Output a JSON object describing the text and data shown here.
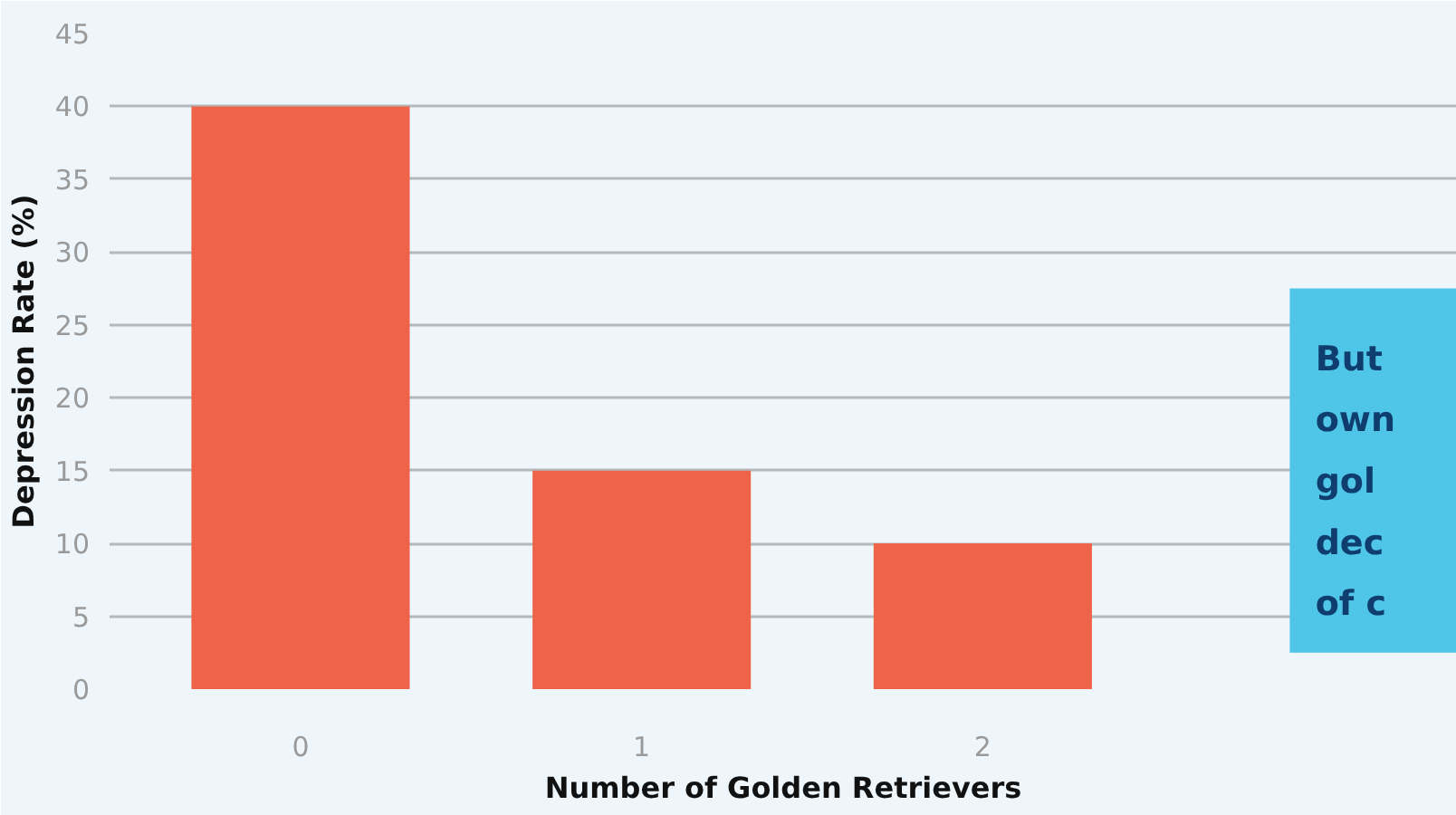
{
  "chart_data": {
    "type": "bar",
    "xlabel": "Number of Golden Retrievers",
    "ylabel": "Depression Rate (%)",
    "categories": [
      "0",
      "1",
      "2"
    ],
    "values": [
      40,
      15,
      10
    ],
    "color": "#ef634a",
    "ylim": [
      0,
      45
    ],
    "yticks": [
      0,
      5,
      10,
      15,
      20,
      25,
      30,
      35,
      40,
      45
    ],
    "grid": "y",
    "annotations": [
      "But\nown\ngol\ndec\nof c"
    ]
  }
}
